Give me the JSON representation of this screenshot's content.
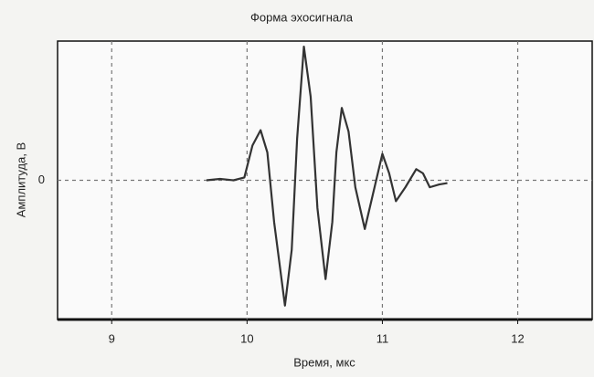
{
  "chart_data": {
    "type": "line",
    "title": "Форма эхосигнала",
    "x_label": "Время, мкс",
    "y_label": "Амплитуда, В",
    "x": [
      9.7,
      9.8,
      9.9,
      9.98,
      10.04,
      10.1,
      10.15,
      10.2,
      10.28,
      10.33,
      10.37,
      10.42,
      10.47,
      10.52,
      10.58,
      10.63,
      10.66,
      10.7,
      10.75,
      10.8,
      10.87,
      10.93,
      11.0,
      11.05,
      11.1,
      11.17,
      11.25,
      11.3,
      11.35,
      11.42,
      11.48
    ],
    "values": [
      0,
      0.01,
      0,
      0.02,
      0.25,
      0.36,
      0.2,
      -0.3,
      -0.9,
      -0.5,
      0.3,
      0.96,
      0.6,
      -0.2,
      -0.71,
      -0.3,
      0.2,
      0.52,
      0.35,
      -0.05,
      -0.35,
      -0.1,
      0.19,
      0.05,
      -0.15,
      -0.05,
      0.08,
      0.05,
      -0.05,
      -0.03,
      -0.02
    ],
    "color": "#333333",
    "xlim": [
      8.6,
      12.55
    ],
    "xticks": [
      9,
      10,
      11,
      12
    ],
    "ylim": [
      -1,
      1
    ],
    "yticks": [
      0
    ],
    "grid": true
  }
}
